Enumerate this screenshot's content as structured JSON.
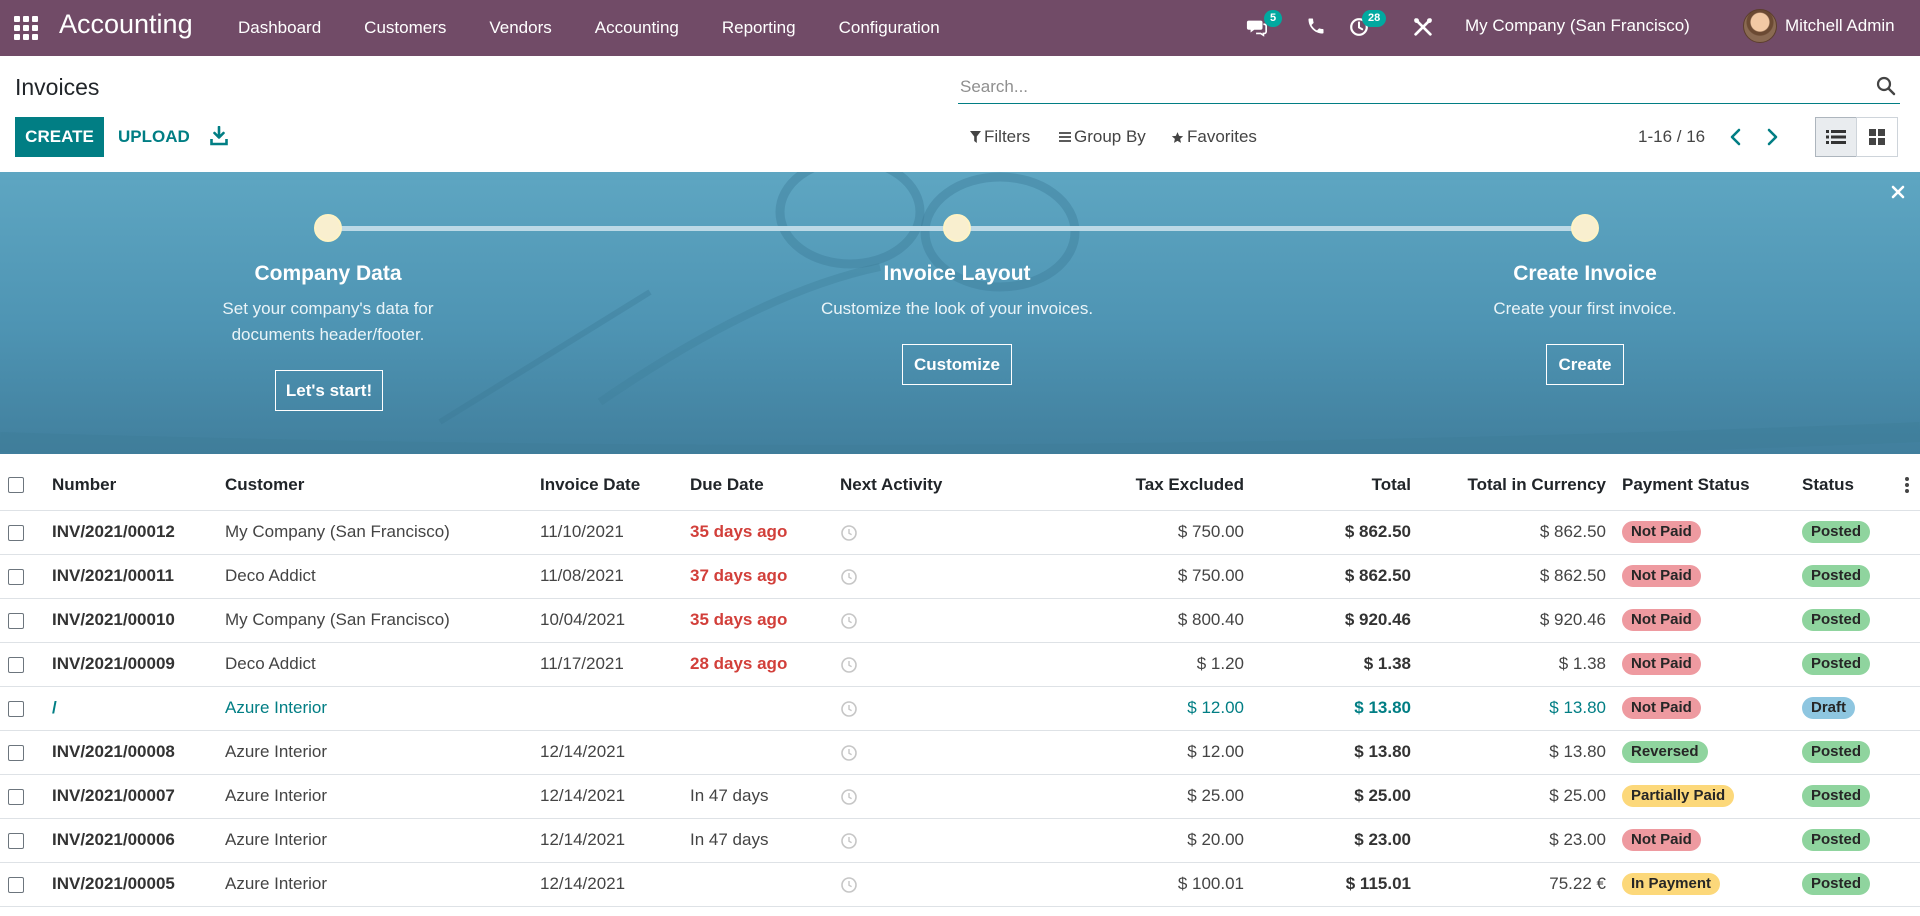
{
  "navbar": {
    "app_name": "Accounting",
    "menu": [
      "Dashboard",
      "Customers",
      "Vendors",
      "Accounting",
      "Reporting",
      "Configuration"
    ],
    "messages_count": "5",
    "activities_count": "28",
    "company": "My Company (San Francisco)",
    "user": "Mitchell Admin",
    "icons": [
      "apps-grid-icon",
      "chat-icon",
      "phone-icon",
      "clock-icon",
      "tools-icon"
    ]
  },
  "control_panel": {
    "title": "Invoices",
    "create_label": "CREATE",
    "upload_label": "UPLOAD",
    "search_placeholder": "Search...",
    "filters_label": "Filters",
    "groupby_label": "Group By",
    "favorites_label": "Favorites",
    "pager": "1-16 / 16"
  },
  "banner": {
    "steps": [
      {
        "title": "Company Data",
        "desc_line1": "Set your company's data for",
        "desc_line2": "documents header/footer.",
        "button": "Let's start!"
      },
      {
        "title": "Invoice Layout",
        "desc_line1": "Customize the look of your invoices.",
        "desc_line2": "",
        "button": "Customize"
      },
      {
        "title": "Create Invoice",
        "desc_line1": "Create your first invoice.",
        "desc_line2": "",
        "button": "Create"
      }
    ]
  },
  "table": {
    "columns": [
      "Number",
      "Customer",
      "Invoice Date",
      "Due Date",
      "Next Activity",
      "Tax Excluded",
      "Total",
      "Total in Currency",
      "Payment Status",
      "Status"
    ],
    "rows": [
      {
        "number": "INV/2021/00012",
        "customer": "My Company (San Francisco)",
        "invoice_date": "11/10/2021",
        "due_date": "35 days ago",
        "overdue": true,
        "tax_excluded": "$ 750.00",
        "total": "$ 862.50",
        "total_currency": "$ 862.50",
        "payment_status": "Not Paid",
        "payment_color": "red",
        "status": "Posted",
        "status_color": "green"
      },
      {
        "number": "INV/2021/00011",
        "customer": "Deco Addict",
        "invoice_date": "11/08/2021",
        "due_date": "37 days ago",
        "overdue": true,
        "tax_excluded": "$ 750.00",
        "total": "$ 862.50",
        "total_currency": "$ 862.50",
        "payment_status": "Not Paid",
        "payment_color": "red",
        "status": "Posted",
        "status_color": "green"
      },
      {
        "number": "INV/2021/00010",
        "customer": "My Company (San Francisco)",
        "invoice_date": "10/04/2021",
        "due_date": "35 days ago",
        "overdue": true,
        "tax_excluded": "$ 800.40",
        "total": "$ 920.46",
        "total_currency": "$ 920.46",
        "payment_status": "Not Paid",
        "payment_color": "red",
        "status": "Posted",
        "status_color": "green"
      },
      {
        "number": "INV/2021/00009",
        "customer": "Deco Addict",
        "invoice_date": "11/17/2021",
        "due_date": "28 days ago",
        "overdue": true,
        "tax_excluded": "$ 1.20",
        "total": "$ 1.38",
        "total_currency": "$ 1.38",
        "payment_status": "Not Paid",
        "payment_color": "red",
        "status": "Posted",
        "status_color": "green"
      },
      {
        "number": "/",
        "customer": "Azure Interior",
        "invoice_date": "",
        "due_date": "",
        "overdue": false,
        "draft": true,
        "tax_excluded": "$ 12.00",
        "total": "$ 13.80",
        "total_currency": "$ 13.80",
        "payment_status": "Not Paid",
        "payment_color": "red",
        "status": "Draft",
        "status_color": "blue"
      },
      {
        "number": "INV/2021/00008",
        "customer": "Azure Interior",
        "invoice_date": "12/14/2021",
        "due_date": "",
        "overdue": false,
        "tax_excluded": "$ 12.00",
        "total": "$ 13.80",
        "total_currency": "$ 13.80",
        "payment_status": "Reversed",
        "payment_color": "green",
        "status": "Posted",
        "status_color": "green"
      },
      {
        "number": "INV/2021/00007",
        "customer": "Azure Interior",
        "invoice_date": "12/14/2021",
        "due_date": "In 47 days",
        "overdue": false,
        "tax_excluded": "$ 25.00",
        "total": "$ 25.00",
        "total_currency": "$ 25.00",
        "payment_status": "Partially Paid",
        "payment_color": "yellow",
        "status": "Posted",
        "status_color": "green"
      },
      {
        "number": "INV/2021/00006",
        "customer": "Azure Interior",
        "invoice_date": "12/14/2021",
        "due_date": "In 47 days",
        "overdue": false,
        "tax_excluded": "$ 20.00",
        "total": "$ 23.00",
        "total_currency": "$ 23.00",
        "payment_status": "Not Paid",
        "payment_color": "red",
        "status": "Posted",
        "status_color": "green"
      },
      {
        "number": "INV/2021/00005",
        "customer": "Azure Interior",
        "invoice_date": "12/14/2021",
        "due_date": "",
        "overdue": false,
        "tax_excluded": "$ 100.01",
        "total": "$ 115.01",
        "total_currency": "75.22 €",
        "payment_status": "In Payment",
        "payment_color": "yellow",
        "status": "Posted",
        "status_color": "green"
      }
    ]
  },
  "colors": {
    "navbar": "#714b67",
    "primary": "#017e84",
    "badge": "#01a9a0",
    "overdue": "#d23f3a"
  }
}
